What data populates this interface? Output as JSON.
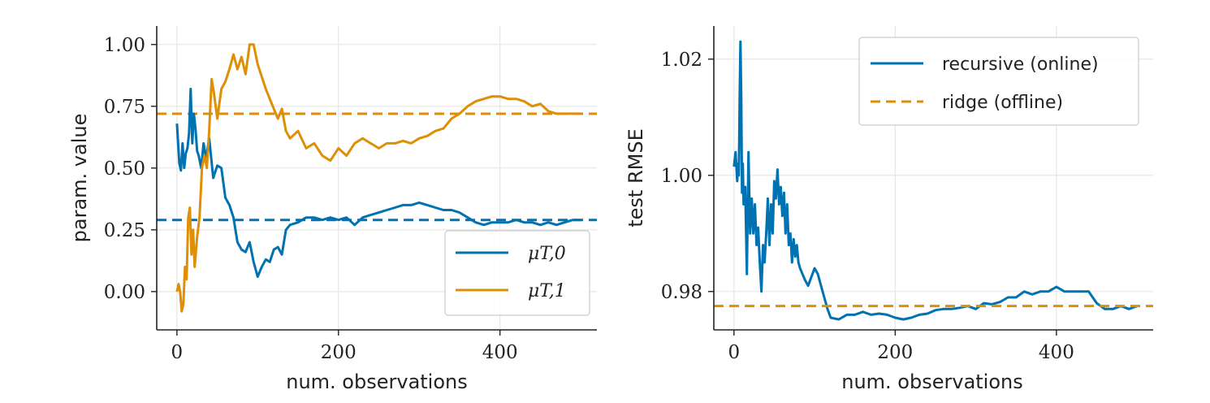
{
  "colors": {
    "blue": "#0072b2",
    "orange": "#de8f05"
  },
  "chart_data": [
    {
      "type": "line",
      "xlabel": "num. observations",
      "ylabel": "param. value",
      "xlim": [
        -25,
        520
      ],
      "ylim": [
        -0.155,
        1.075
      ],
      "xticks": [
        0,
        200,
        400
      ],
      "xtick_labels": [
        "0",
        "200",
        "400"
      ],
      "yticks": [
        0.0,
        0.25,
        0.5,
        0.75,
        1.0
      ],
      "ytick_labels": [
        "0.00",
        "0.25",
        "0.50",
        "0.75",
        "1.00"
      ],
      "grid": true,
      "legend_position": "bottom-right",
      "hlines": [
        {
          "y": 0.29,
          "color": "#0072b2",
          "style": "dashed"
        },
        {
          "y": 0.72,
          "color": "#de8f05",
          "style": "dashed"
        }
      ],
      "series": [
        {
          "name": "μT,0",
          "color": "#0072b2",
          "x": [
            0,
            3,
            5,
            7,
            9,
            11,
            13,
            15,
            17,
            19,
            21,
            23,
            25,
            27,
            30,
            33,
            36,
            40,
            45,
            50,
            55,
            60,
            65,
            70,
            75,
            80,
            85,
            90,
            95,
            100,
            105,
            110,
            115,
            120,
            125,
            130,
            135,
            140,
            150,
            160,
            170,
            180,
            190,
            200,
            210,
            220,
            230,
            240,
            250,
            260,
            270,
            280,
            290,
            300,
            310,
            320,
            330,
            340,
            350,
            360,
            370,
            380,
            390,
            400,
            410,
            420,
            430,
            440,
            450,
            460,
            470,
            480,
            490,
            500
          ],
          "y": [
            0.68,
            0.52,
            0.49,
            0.6,
            0.5,
            0.56,
            0.58,
            0.64,
            0.82,
            0.6,
            0.72,
            0.66,
            0.57,
            0.55,
            0.5,
            0.6,
            0.54,
            0.62,
            0.46,
            0.51,
            0.5,
            0.38,
            0.35,
            0.3,
            0.2,
            0.17,
            0.16,
            0.2,
            0.12,
            0.06,
            0.1,
            0.13,
            0.12,
            0.17,
            0.18,
            0.15,
            0.25,
            0.27,
            0.28,
            0.3,
            0.3,
            0.29,
            0.3,
            0.29,
            0.3,
            0.27,
            0.3,
            0.31,
            0.32,
            0.33,
            0.34,
            0.35,
            0.35,
            0.36,
            0.35,
            0.34,
            0.33,
            0.33,
            0.32,
            0.3,
            0.28,
            0.27,
            0.28,
            0.28,
            0.28,
            0.29,
            0.28,
            0.28,
            0.27,
            0.28,
            0.27,
            0.28,
            0.29,
            0.29
          ]
        },
        {
          "name": "μT,1",
          "color": "#de8f05",
          "x": [
            0,
            2,
            4,
            6,
            8,
            10,
            12,
            14,
            16,
            18,
            20,
            22,
            25,
            28,
            31,
            34,
            37,
            40,
            43,
            46,
            50,
            55,
            60,
            65,
            70,
            75,
            80,
            85,
            90,
            95,
            100,
            105,
            110,
            115,
            120,
            125,
            130,
            135,
            140,
            150,
            160,
            170,
            180,
            190,
            200,
            210,
            220,
            230,
            240,
            250,
            260,
            270,
            280,
            290,
            300,
            310,
            320,
            330,
            340,
            350,
            360,
            370,
            380,
            390,
            400,
            410,
            420,
            430,
            440,
            450,
            460,
            470,
            480,
            490,
            500
          ],
          "y": [
            0.0,
            0.03,
            0.0,
            -0.08,
            -0.05,
            0.1,
            0.05,
            0.3,
            0.34,
            0.15,
            0.25,
            0.1,
            0.22,
            0.3,
            0.5,
            0.55,
            0.5,
            0.65,
            0.86,
            0.8,
            0.7,
            0.82,
            0.85,
            0.9,
            0.96,
            0.9,
            0.95,
            0.88,
            1.0,
            1.0,
            0.92,
            0.87,
            0.82,
            0.78,
            0.74,
            0.7,
            0.74,
            0.65,
            0.62,
            0.65,
            0.58,
            0.6,
            0.55,
            0.53,
            0.58,
            0.55,
            0.6,
            0.62,
            0.6,
            0.58,
            0.6,
            0.6,
            0.61,
            0.6,
            0.62,
            0.63,
            0.65,
            0.66,
            0.7,
            0.72,
            0.75,
            0.77,
            0.78,
            0.79,
            0.79,
            0.78,
            0.78,
            0.77,
            0.75,
            0.76,
            0.73,
            0.72,
            0.72,
            0.72,
            0.72
          ]
        }
      ]
    },
    {
      "type": "line",
      "xlabel": "num. observations",
      "ylabel": "test RMSE",
      "xlim": [
        -25,
        520
      ],
      "ylim": [
        0.9734,
        1.0257
      ],
      "xticks": [
        0,
        200,
        400
      ],
      "xtick_labels": [
        "0",
        "200",
        "400"
      ],
      "yticks": [
        0.98,
        1.0,
        1.02
      ],
      "ytick_labels": [
        "0.98",
        "1.00",
        "1.02"
      ],
      "grid": true,
      "legend_position": "top-right",
      "series": [
        {
          "name": "recursive (online)",
          "color": "#0072b2",
          "style": "solid",
          "x": [
            0,
            2,
            4,
            5,
            6,
            7,
            8,
            9,
            10,
            11,
            12,
            14,
            16,
            18,
            20,
            22,
            24,
            26,
            28,
            30,
            32,
            34,
            36,
            38,
            40,
            42,
            44,
            46,
            48,
            50,
            52,
            54,
            56,
            58,
            60,
            62,
            64,
            66,
            68,
            70,
            72,
            74,
            76,
            78,
            80,
            82,
            85,
            88,
            92,
            96,
            100,
            104,
            108,
            112,
            116,
            120,
            130,
            140,
            150,
            160,
            170,
            180,
            190,
            200,
            210,
            220,
            230,
            240,
            250,
            260,
            270,
            280,
            290,
            300,
            310,
            320,
            330,
            340,
            350,
            360,
            370,
            380,
            390,
            400,
            410,
            420,
            430,
            440,
            450,
            460,
            470,
            480,
            490,
            500
          ],
          "y": [
            1.0015,
            1.004,
            0.999,
            1.002,
            1.0,
            1.013,
            1.023,
            1.013,
            0.997,
            1.002,
            0.995,
            0.998,
            0.983,
            1.004,
            0.99,
            0.996,
            0.99,
            0.995,
            0.988,
            0.991,
            0.985,
            0.98,
            0.988,
            0.985,
            0.99,
            0.996,
            0.988,
            0.995,
            0.99,
            0.999,
            0.996,
            1.001,
            0.995,
            0.998,
            0.993,
            0.997,
            0.99,
            0.995,
            0.988,
            0.99,
            0.985,
            0.989,
            0.986,
            0.988,
            0.985,
            0.984,
            0.983,
            0.982,
            0.981,
            0.9825,
            0.984,
            0.983,
            0.981,
            0.979,
            0.977,
            0.9755,
            0.9752,
            0.976,
            0.976,
            0.9765,
            0.976,
            0.9762,
            0.976,
            0.9755,
            0.9752,
            0.9755,
            0.976,
            0.9762,
            0.9768,
            0.977,
            0.977,
            0.9772,
            0.9775,
            0.977,
            0.978,
            0.9778,
            0.9782,
            0.979,
            0.979,
            0.98,
            0.9795,
            0.98,
            0.98,
            0.9808,
            0.98,
            0.98,
            0.98,
            0.98,
            0.978,
            0.977,
            0.977,
            0.9775,
            0.977,
            0.9775
          ]
        },
        {
          "name": "ridge (offline)",
          "color": "#de8f05",
          "style": "dashed",
          "hline": 0.9775
        }
      ]
    }
  ]
}
